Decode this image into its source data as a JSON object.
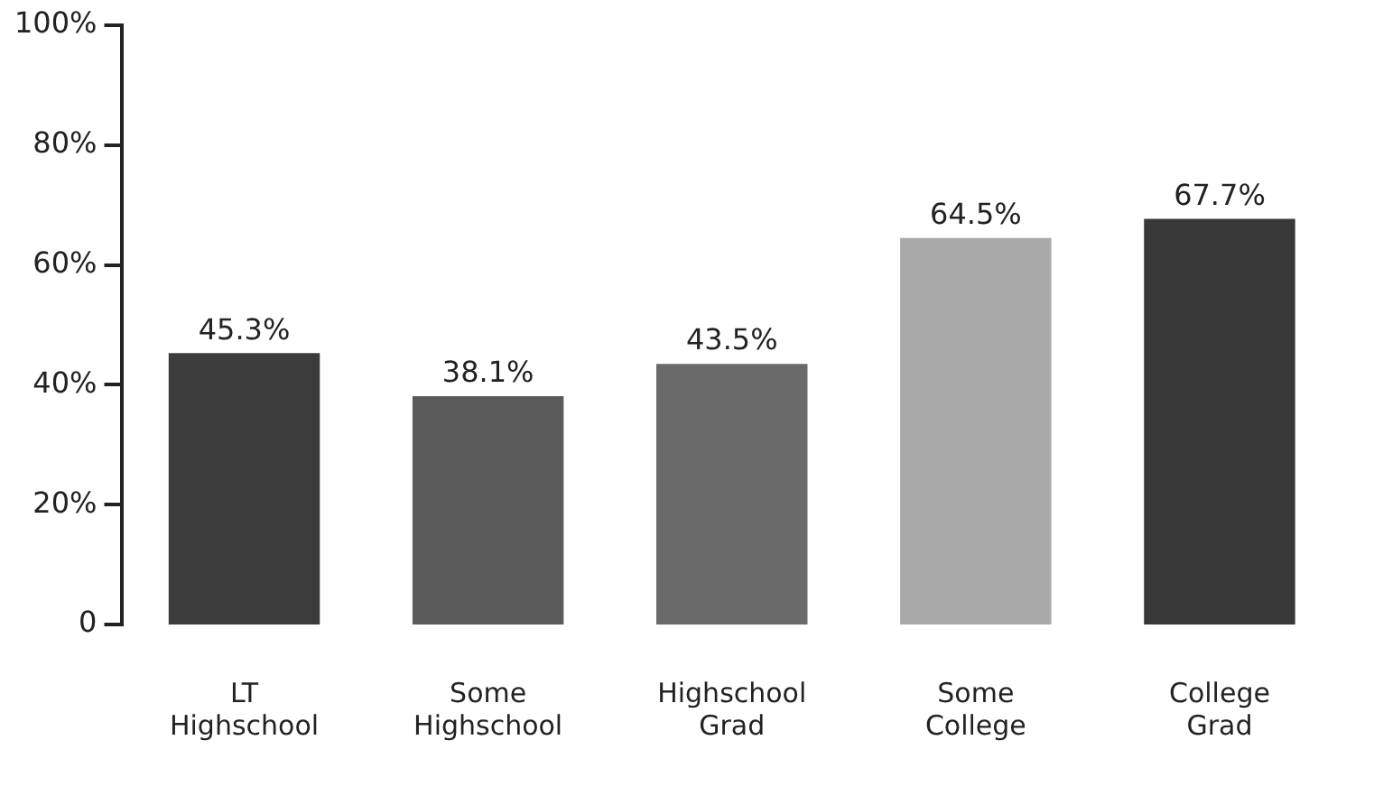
{
  "chart_data": {
    "type": "bar",
    "categories": [
      "LT Highschool",
      "Some Highschool",
      "Highschool Grad",
      "Some College",
      "College Grad"
    ],
    "values": [
      45.3,
      38.1,
      43.5,
      64.5,
      67.7
    ],
    "value_labels": [
      "45.3%",
      "38.1%",
      "43.5%",
      "64.5%",
      "67.7%"
    ],
    "colors": [
      "#3c3c3c",
      "#5a5a5a",
      "#6a6a6a",
      "#a9a9a9",
      "#383838"
    ],
    "ylim": [
      0,
      100
    ],
    "yticks": [
      {
        "value": 0,
        "label": "0"
      },
      {
        "value": 20,
        "label": "20%"
      },
      {
        "value": 40,
        "label": "40%"
      },
      {
        "value": 60,
        "label": "60%"
      },
      {
        "value": 80,
        "label": "80%"
      },
      {
        "value": 100,
        "label": "100%"
      }
    ],
    "grid": false,
    "legend": false
  }
}
